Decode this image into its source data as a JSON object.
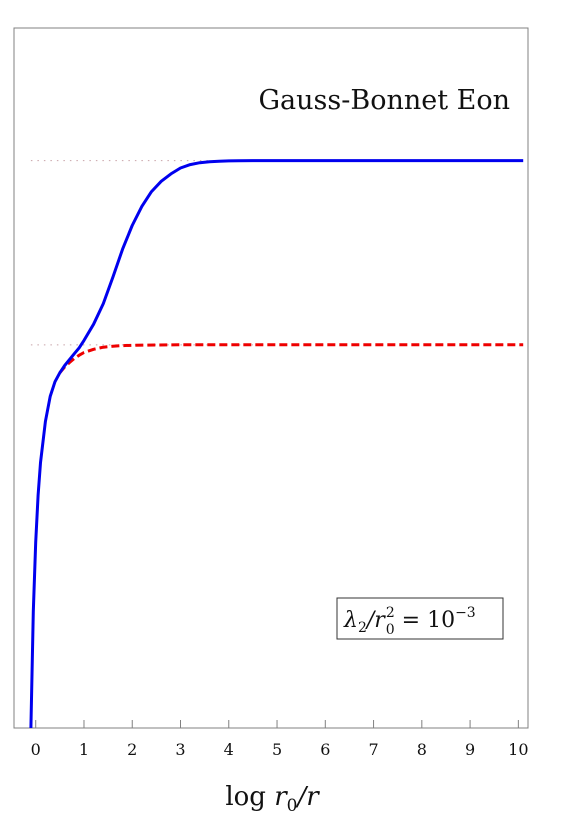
{
  "chart_data": {
    "type": "line",
    "title": "Gauss-Bonnet Eon",
    "xlabel": "log r0/r",
    "ylabel": "",
    "xlim": [
      -0.45,
      10.2
    ],
    "ylim": [
      -1.6,
      3.15
    ],
    "xticks": [
      0,
      1,
      2,
      3,
      4,
      5,
      6,
      7,
      8,
      9,
      10
    ],
    "xtick_labels": [
      "0",
      "1",
      "2",
      "3",
      "4",
      "5",
      "6",
      "7",
      "8",
      "9",
      "10"
    ],
    "annotation": {
      "lambda": "λ",
      "lambda_sub": "2",
      "slash_r": "/r",
      "r_sup": "2",
      "r_sub": "0",
      "equals": " = 10",
      "exponent": "−3"
    },
    "reference_lines": [
      {
        "y": 2.25,
        "style": "dotted"
      },
      {
        "y": 1.0,
        "style": "dotted"
      }
    ],
    "series": [
      {
        "style": "solid",
        "color": "#0000ee",
        "x": [
          -0.1,
          -0.05,
          0.0,
          0.05,
          0.1,
          0.2,
          0.3,
          0.4,
          0.5,
          0.6,
          0.7,
          0.8,
          0.9,
          1.0,
          1.2,
          1.4,
          1.6,
          1.8,
          2.0,
          2.2,
          2.4,
          2.6,
          2.8,
          3.0,
          3.2,
          3.4,
          3.6,
          3.8,
          4.0,
          4.2,
          4.5,
          5.0,
          5.5,
          6.0,
          7.0,
          8.0,
          9.0,
          10.0,
          10.1
        ],
        "y": [
          -1.6,
          -0.81,
          -0.34,
          -0.02,
          0.2,
          0.48,
          0.65,
          0.75,
          0.81,
          0.86,
          0.9,
          0.94,
          0.98,
          1.03,
          1.14,
          1.28,
          1.46,
          1.65,
          1.81,
          1.94,
          2.04,
          2.11,
          2.16,
          2.2,
          2.223,
          2.236,
          2.243,
          2.246,
          2.248,
          2.249,
          2.25,
          2.25,
          2.25,
          2.25,
          2.25,
          2.25,
          2.25,
          2.25,
          2.25
        ]
      },
      {
        "style": "dashed",
        "color": "#ee0000",
        "x": [
          0.5,
          0.6,
          0.7,
          0.8,
          0.9,
          1.0,
          1.2,
          1.4,
          1.6,
          1.8,
          2.0,
          2.5,
          3.0,
          4.0,
          5.0,
          6.0,
          7.0,
          8.0,
          9.0,
          10.0,
          10.1
        ],
        "y": [
          0.81,
          0.85,
          0.88,
          0.907,
          0.93,
          0.948,
          0.97,
          0.984,
          0.991,
          0.995,
          0.997,
          0.999,
          1.0,
          1.0,
          1.0,
          1.0,
          1.0,
          1.0,
          1.0,
          1.0,
          1.0
        ]
      }
    ]
  }
}
